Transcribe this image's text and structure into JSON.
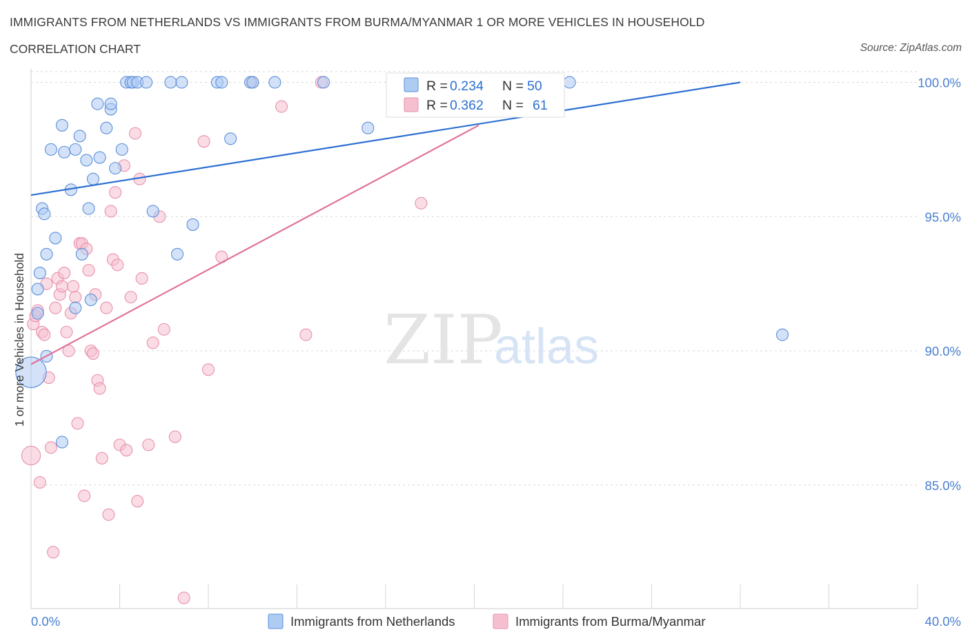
{
  "header": {
    "title": "IMMIGRANTS FROM NETHERLANDS VS IMMIGRANTS FROM BURMA/MYANMAR 1 OR MORE VEHICLES IN HOUSEHOLD",
    "subtitle": "CORRELATION CHART",
    "source": "Source: ZipAtlas.com"
  },
  "watermark": {
    "zip": "ZIP",
    "atlas": "atlas"
  },
  "colors": {
    "blue": "#5b8fd9",
    "blue_fill": "#aecbf2",
    "blue_line": "#2b6fd1",
    "pink": "#e891ad",
    "pink_fill": "#f6bfd0",
    "pink_line": "#e0719a",
    "axis_text": "#4a7fd0",
    "grid": "#d8d8d8"
  },
  "legend_box": {
    "rows": [
      {
        "r_label": "R = ",
        "r_value": "0.234",
        "n_label": "N = ",
        "n_value": "50"
      },
      {
        "r_label": "R = ",
        "r_value": "0.362",
        "n_label": "N = ",
        "n_value": "61"
      }
    ]
  },
  "chart_data": {
    "type": "scatter",
    "title": "IMMIGRANTS FROM NETHERLANDS VS IMMIGRANTS FROM BURMA/MYANMAR 1 OR MORE VEHICLES IN HOUSEHOLD",
    "subtitle": "CORRELATION CHART",
    "xlabel": "",
    "ylabel": "1 or more Vehicles in Household",
    "xlim": [
      0,
      40
    ],
    "ylim": [
      80.4,
      100.5
    ],
    "x_tick_labels": [
      {
        "x": 0,
        "label": "0.0%"
      },
      {
        "x": 40,
        "label": "40.0%"
      }
    ],
    "y_ticks": [
      {
        "y": 85,
        "label": "85.0%"
      },
      {
        "y": 90,
        "label": "90.0%"
      },
      {
        "y": 95,
        "label": "95.0%"
      },
      {
        "y": 100,
        "label": "100.0%"
      }
    ],
    "grid": true,
    "legend_position": "bottom",
    "series": [
      {
        "name": "Immigrants from Netherlands",
        "color": "blue",
        "trend": {
          "x": [
            0,
            32
          ],
          "y": [
            95.8,
            100.0
          ]
        },
        "points": [
          [
            0.0,
            89.2,
            2.6
          ],
          [
            0.3,
            92.3,
            1
          ],
          [
            0.4,
            92.9,
            1
          ],
          [
            0.5,
            95.3,
            1
          ],
          [
            0.6,
            95.1,
            1
          ],
          [
            0.7,
            93.6,
            1
          ],
          [
            0.9,
            97.5,
            1
          ],
          [
            1.1,
            94.2,
            1
          ],
          [
            1.4,
            98.4,
            1
          ],
          [
            1.5,
            97.4,
            1
          ],
          [
            1.8,
            96.0,
            1
          ],
          [
            2.0,
            97.5,
            1
          ],
          [
            2.2,
            98.0,
            1
          ],
          [
            2.3,
            93.6,
            1
          ],
          [
            2.5,
            97.1,
            1
          ],
          [
            2.6,
            95.3,
            1
          ],
          [
            2.7,
            91.9,
            1
          ],
          [
            2.8,
            96.4,
            1
          ],
          [
            3.0,
            99.2,
            1
          ],
          [
            3.1,
            97.2,
            1
          ],
          [
            3.4,
            98.3,
            1
          ],
          [
            3.6,
            99.0,
            1
          ],
          [
            3.8,
            96.8,
            1
          ],
          [
            4.1,
            97.5,
            1
          ],
          [
            4.3,
            100.0,
            1
          ],
          [
            4.5,
            100.0,
            1
          ],
          [
            4.6,
            100.0,
            1
          ],
          [
            4.8,
            100.0,
            1
          ],
          [
            5.2,
            100.0,
            1
          ],
          [
            5.5,
            95.2,
            1
          ],
          [
            6.3,
            100.0,
            1
          ],
          [
            6.6,
            93.6,
            1
          ],
          [
            6.8,
            100.0,
            1
          ],
          [
            7.3,
            94.7,
            1
          ],
          [
            8.4,
            100.0,
            1
          ],
          [
            8.6,
            100.0,
            1
          ],
          [
            9.0,
            97.9,
            1
          ],
          [
            9.9,
            100.0,
            1
          ],
          [
            11.0,
            100.0,
            1
          ],
          [
            13.2,
            100.0,
            1
          ],
          [
            15.2,
            98.3,
            1
          ],
          [
            16.3,
            100.0,
            1
          ],
          [
            24.3,
            100.0,
            1
          ],
          [
            33.9,
            90.6,
            1
          ],
          [
            0.3,
            91.4,
            1
          ],
          [
            0.7,
            89.8,
            1
          ],
          [
            1.4,
            86.6,
            1
          ],
          [
            2.0,
            91.6,
            1
          ],
          [
            3.6,
            99.2,
            1
          ],
          [
            10.0,
            100.0,
            1
          ]
        ]
      },
      {
        "name": "Immigrants from Burma/Myanmar",
        "color": "pink",
        "trend": {
          "x": [
            0,
            20.2
          ],
          "y": [
            89.5,
            98.4
          ]
        },
        "points": [
          [
            0.0,
            86.1,
            1.6
          ],
          [
            0.1,
            91.0,
            1
          ],
          [
            0.2,
            91.3,
            1
          ],
          [
            0.3,
            91.5,
            1
          ],
          [
            0.4,
            85.1,
            1
          ],
          [
            0.5,
            90.7,
            1
          ],
          [
            0.6,
            90.6,
            1
          ],
          [
            0.7,
            92.5,
            1
          ],
          [
            0.8,
            89.0,
            1
          ],
          [
            0.9,
            86.4,
            1
          ],
          [
            1.0,
            82.5,
            1
          ],
          [
            1.1,
            91.6,
            1
          ],
          [
            1.2,
            92.7,
            1
          ],
          [
            1.3,
            92.1,
            1
          ],
          [
            1.4,
            92.4,
            1
          ],
          [
            1.5,
            92.9,
            1
          ],
          [
            1.6,
            90.7,
            1
          ],
          [
            1.7,
            90.0,
            1
          ],
          [
            1.8,
            91.4,
            1
          ],
          [
            1.9,
            92.4,
            1
          ],
          [
            2.0,
            92.0,
            1
          ],
          [
            2.1,
            87.3,
            1
          ],
          [
            2.2,
            94.0,
            1
          ],
          [
            2.3,
            94.0,
            1
          ],
          [
            2.4,
            84.6,
            1
          ],
          [
            2.5,
            93.8,
            1
          ],
          [
            2.6,
            93.0,
            1
          ],
          [
            2.7,
            90.0,
            1
          ],
          [
            2.8,
            89.9,
            1
          ],
          [
            2.9,
            92.1,
            1
          ],
          [
            3.0,
            88.9,
            1
          ],
          [
            3.1,
            88.6,
            1
          ],
          [
            3.2,
            86.0,
            1
          ],
          [
            3.4,
            91.6,
            1
          ],
          [
            3.5,
            83.9,
            1
          ],
          [
            3.6,
            95.2,
            1
          ],
          [
            3.7,
            93.4,
            1
          ],
          [
            3.8,
            95.9,
            1
          ],
          [
            3.9,
            93.2,
            1
          ],
          [
            4.0,
            86.5,
            1
          ],
          [
            4.2,
            96.9,
            1
          ],
          [
            4.3,
            86.3,
            1
          ],
          [
            4.5,
            92.0,
            1
          ],
          [
            4.7,
            98.1,
            1
          ],
          [
            4.8,
            84.4,
            1
          ],
          [
            4.9,
            96.4,
            1
          ],
          [
            5.0,
            92.7,
            1
          ],
          [
            5.3,
            86.5,
            1
          ],
          [
            5.5,
            90.3,
            1
          ],
          [
            5.8,
            95.0,
            1
          ],
          [
            6.0,
            90.8,
            1
          ],
          [
            6.5,
            86.8,
            1
          ],
          [
            6.9,
            80.8,
            1
          ],
          [
            7.8,
            97.8,
            1
          ],
          [
            8.0,
            89.3,
            1
          ],
          [
            8.6,
            93.5,
            1
          ],
          [
            10.0,
            100.0,
            1
          ],
          [
            11.3,
            99.1,
            1
          ],
          [
            12.4,
            90.6,
            1
          ],
          [
            13.1,
            100.0,
            1
          ],
          [
            17.6,
            95.5,
            1
          ]
        ]
      }
    ]
  },
  "bottom_legend": [
    {
      "label": "Immigrants from Netherlands",
      "color": "blue"
    },
    {
      "label": "Immigrants from Burma/Myanmar",
      "color": "pink"
    }
  ]
}
